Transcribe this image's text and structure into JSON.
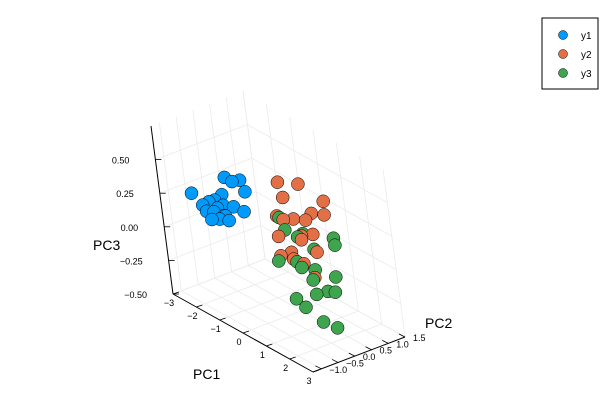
{
  "chart_data": {
    "type": "scatter",
    "projection": "3d",
    "title": "",
    "xlabel": "PC1",
    "ylabel": "PC2",
    "zlabel": "PC3",
    "xlim": [
      -3,
      3
    ],
    "ylim": [
      -1.25,
      1.5
    ],
    "zlim": [
      -0.5,
      0.75
    ],
    "xticks": [
      -3,
      -2,
      -1,
      0,
      1,
      2,
      3
    ],
    "xtick_labels": [
      "−3",
      "−2",
      "−1",
      "0",
      "1",
      "2",
      "3"
    ],
    "yticks": [
      -1.0,
      -0.5,
      0.0,
      0.5,
      1.0,
      1.5
    ],
    "ytick_labels": [
      "−1.0",
      "−0.5",
      "0.0",
      "0.5",
      "1.0",
      "1.5"
    ],
    "zticks": [
      -0.5,
      -0.25,
      0.0,
      0.25,
      0.5
    ],
    "ztick_labels": [
      "−0.50",
      "−0.25",
      "0.00",
      "0.25",
      "0.50"
    ],
    "grid": true,
    "legend_position": "top-right",
    "series": [
      {
        "name": "y1",
        "color": "#009AFA",
        "points": [
          [
            -2.7,
            0.32,
            0.04
          ],
          [
            -2.8,
            0.21,
            0.02
          ],
          [
            -2.95,
            0.19,
            -0.02
          ],
          [
            -2.7,
            -0.05,
            -0.03
          ],
          [
            -2.75,
            0.38,
            -0.05
          ],
          [
            -2.45,
            0.46,
            0.04
          ],
          [
            -2.6,
            0.25,
            -0.02
          ],
          [
            -2.55,
            -0.35,
            0.12
          ],
          [
            -2.9,
            -0.41,
            0.18
          ],
          [
            -2.85,
            0.02,
            0.08
          ],
          [
            -2.6,
            0.6,
            0.2
          ],
          [
            -2.55,
            0.9,
            0.1
          ],
          [
            -2.4,
            0.7,
            0.22
          ],
          [
            -2.8,
            0.5,
            -0.1
          ],
          [
            -2.5,
            0.2,
            0.15
          ],
          [
            -2.65,
            -0.2,
            0.05
          ],
          [
            -2.7,
            0.1,
            0.1
          ],
          [
            -2.9,
            0.3,
            -0.08
          ],
          [
            -2.3,
            0.65,
            0.0
          ],
          [
            -2.6,
            0.4,
            0.25
          ]
        ]
      },
      {
        "name": "y2",
        "color": "#E26F46",
        "points": [
          [
            1.3,
            0.7,
            0.32
          ],
          [
            0.9,
            0.4,
            0.27
          ],
          [
            1.4,
            0.3,
            0.09
          ],
          [
            0.6,
            0.1,
            -0.02
          ],
          [
            1.2,
            0.4,
            0.35
          ],
          [
            0.8,
            -0.2,
            0.6
          ],
          [
            1.0,
            -0.5,
            0.1
          ],
          [
            0.5,
            0.3,
            0.25
          ],
          [
            1.5,
            0.6,
            0.45
          ],
          [
            0.7,
            0.0,
            0.05
          ],
          [
            0.3,
            0.2,
            0.4
          ],
          [
            1.1,
            0.1,
            0.2
          ],
          [
            0.4,
            -0.1,
            0.3
          ],
          [
            0.9,
            0.55,
            0.15
          ],
          [
            1.3,
            0.2,
            -0.1
          ],
          [
            0.6,
            0.5,
            0.5
          ],
          [
            1.0,
            -0.3,
            0.35
          ],
          [
            0.2,
            0.0,
            0.12
          ],
          [
            1.4,
            -0.1,
            0.22
          ],
          [
            0.8,
            0.25,
            -0.05
          ]
        ]
      },
      {
        "name": "y3",
        "color": "#3EA44E",
        "points": [
          [
            2.5,
            -0.5,
            0.14
          ],
          [
            2.9,
            -0.7,
            -0.19
          ],
          [
            1.5,
            -0.6,
            0.35
          ],
          [
            2.1,
            -0.3,
            -0.1
          ],
          [
            1.8,
            -0.9,
            0.5
          ],
          [
            2.6,
            0.0,
            0.05
          ],
          [
            1.3,
            -0.4,
            -0.2
          ],
          [
            2.2,
            -0.8,
            0.2
          ],
          [
            1.7,
            -0.1,
            -0.05
          ],
          [
            2.4,
            0.2,
            0.3
          ],
          [
            1.9,
            -0.5,
            0.1
          ],
          [
            2.7,
            -0.2,
            -0.3
          ],
          [
            1.6,
            0.1,
            0.15
          ],
          [
            2.3,
            -0.6,
            0.4
          ],
          [
            2.0,
            0.3,
            -0.15
          ],
          [
            1.4,
            -0.2,
            0.25
          ],
          [
            2.8,
            -0.4,
            0.0
          ],
          [
            1.2,
            -0.7,
            0.1
          ],
          [
            2.1,
            0.4,
            0.2
          ],
          [
            2.5,
            -0.9,
            -0.1
          ]
        ]
      }
    ]
  }
}
